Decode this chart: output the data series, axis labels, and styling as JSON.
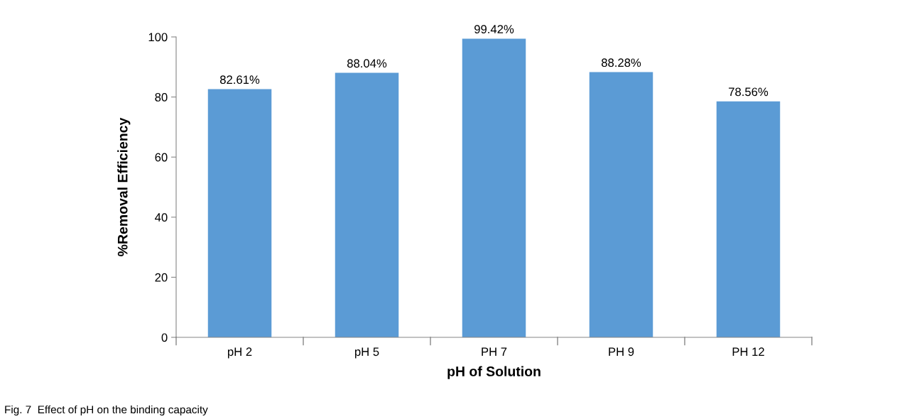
{
  "chart_data": {
    "type": "bar",
    "categories": [
      "pH 2",
      "pH 5",
      "PH 7",
      "PH 9",
      "PH 12"
    ],
    "values": [
      82.61,
      88.04,
      99.42,
      88.28,
      78.56
    ],
    "value_labels": [
      "82.61%",
      "88.04%",
      "99.42%",
      "88.28%",
      "78.56%"
    ],
    "color": "#5b9bd5",
    "xlabel": "pH of Solution",
    "ylabel": "%Removal Efficiency",
    "ylim": [
      0,
      100
    ],
    "yticks": [
      0,
      20,
      40,
      60,
      80,
      100
    ],
    "grid": false,
    "annotations": [
      "Fig. 7  Effect of pH on the binding capacity"
    ]
  }
}
